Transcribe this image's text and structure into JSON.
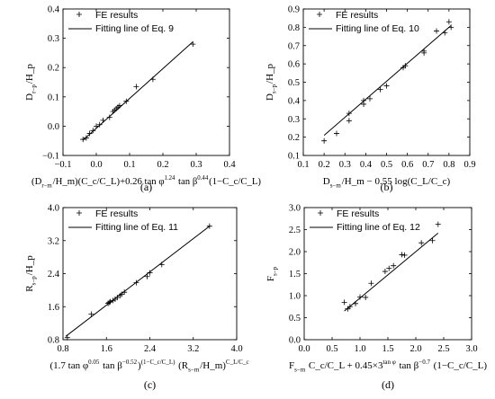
{
  "chart_data": [
    {
      "id": "a",
      "type": "scatter",
      "caption": "(a)",
      "xlim": [
        -0.1,
        0.4
      ],
      "ylim": [
        -0.1,
        0.4
      ],
      "xticks": [
        -0.1,
        0.0,
        0.1,
        0.2,
        0.3,
        0.4
      ],
      "yticks": [
        -0.1,
        0.0,
        0.1,
        0.2,
        0.3,
        0.4
      ],
      "xtick_labels": [
        "−0.1",
        "0.0",
        "0.1",
        "0.2",
        "0.3",
        "0.4"
      ],
      "ytick_labels": [
        "−0.1",
        "0.0",
        "0.1",
        "0.2",
        "0.3",
        "0.4"
      ],
      "xlabel": "(D_{r−m}/H_m)(C_c/C_L)+0.26 tan φ^{1.24} tan β^{0.44}(1−C_c/C_L)",
      "ylabel": "D_{r−p}/H_p",
      "legend": [
        "FE results",
        "Fitting line of Eq. 9"
      ],
      "series": [
        {
          "name": "FE results",
          "x": [
            -0.04,
            -0.03,
            -0.02,
            -0.01,
            0.0,
            0.01,
            0.02,
            0.04,
            0.05,
            0.055,
            0.06,
            0.065,
            0.07,
            0.09,
            0.12,
            0.17,
            0.29
          ],
          "y": [
            -0.045,
            -0.04,
            -0.025,
            -0.015,
            0.0,
            0.005,
            0.02,
            0.03,
            0.05,
            0.055,
            0.06,
            0.065,
            0.07,
            0.085,
            0.135,
            0.16,
            0.28
          ]
        },
        {
          "name": "Fitting line of Eq. 9",
          "x": [
            -0.04,
            0.29
          ],
          "y": [
            -0.048,
            0.288
          ]
        }
      ]
    },
    {
      "id": "b",
      "type": "scatter",
      "caption": "(b)",
      "xlim": [
        0.1,
        0.9
      ],
      "ylim": [
        0.1,
        0.9
      ],
      "xticks": [
        0.1,
        0.2,
        0.3,
        0.4,
        0.5,
        0.6,
        0.7,
        0.8,
        0.9
      ],
      "yticks": [
        0.1,
        0.2,
        0.3,
        0.4,
        0.5,
        0.6,
        0.7,
        0.8,
        0.9
      ],
      "xtick_labels": [
        "0.1",
        "0.2",
        "0.3",
        "0.4",
        "0.5",
        "0.6",
        "0.7",
        "0.8",
        "0.9"
      ],
      "ytick_labels": [
        "0.1",
        "0.2",
        "0.3",
        "0.4",
        "0.5",
        "0.6",
        "0.7",
        "0.8",
        "0.9"
      ],
      "xlabel": "D_{s−m}/H_m − 0.55 log(C_L/C_c)",
      "ylabel": "D_{s−p}/H_p",
      "legend": [
        "FE results",
        "Fitting line of Eq. 10"
      ],
      "series": [
        {
          "name": "FE results",
          "x": [
            0.2,
            0.26,
            0.32,
            0.32,
            0.39,
            0.39,
            0.42,
            0.47,
            0.5,
            0.58,
            0.59,
            0.68,
            0.68,
            0.74,
            0.78,
            0.8,
            0.81
          ],
          "y": [
            0.18,
            0.22,
            0.29,
            0.33,
            0.38,
            0.4,
            0.41,
            0.46,
            0.48,
            0.58,
            0.59,
            0.66,
            0.67,
            0.78,
            0.77,
            0.83,
            0.8
          ]
        },
        {
          "name": "Fitting line of Eq. 10",
          "x": [
            0.2,
            0.81
          ],
          "y": [
            0.21,
            0.81
          ]
        }
      ]
    },
    {
      "id": "c",
      "type": "scatter",
      "caption": "(c)",
      "xlim": [
        0.8,
        4.0
      ],
      "ylim": [
        0.8,
        4.0
      ],
      "xticks": [
        0.8,
        1.6,
        2.4,
        3.2,
        4.0
      ],
      "yticks": [
        0.8,
        1.6,
        2.4,
        3.2,
        4.0
      ],
      "xtick_labels": [
        "0.8",
        "1.6",
        "2.4",
        "3.2",
        "4.0"
      ],
      "ytick_labels": [
        "0.8",
        "1.6",
        "2.4",
        "3.2",
        "4.0"
      ],
      "xlabel": "(1.7 tan φ^{0.05} tan β^{−0.52})^{(1−C_c/C_L)} (R_{s−m}/H_m)^{C_L/C_c}",
      "ylabel": "R_{s−p}/H_p",
      "legend": [
        "FE results",
        "Fitting line of Eq. 11"
      ],
      "series": [
        {
          "name": "FE results",
          "x": [
            0.88,
            1.32,
            1.63,
            1.65,
            1.67,
            1.72,
            1.76,
            1.8,
            1.85,
            1.88,
            1.93,
            2.15,
            2.35,
            2.4,
            2.62,
            3.5
          ],
          "y": [
            0.85,
            1.42,
            1.68,
            1.7,
            1.72,
            1.75,
            1.78,
            1.82,
            1.87,
            1.9,
            1.95,
            2.18,
            2.33,
            2.42,
            2.62,
            3.55
          ]
        },
        {
          "name": "Fitting line of Eq. 11",
          "x": [
            0.85,
            3.5
          ],
          "y": [
            0.88,
            3.55
          ]
        }
      ]
    },
    {
      "id": "d",
      "type": "scatter",
      "caption": "(d)",
      "xlim": [
        0.0,
        3.0
      ],
      "ylim": [
        0.0,
        3.0
      ],
      "xticks": [
        0.0,
        0.5,
        1.0,
        1.5,
        2.0,
        2.5,
        3.0
      ],
      "yticks": [
        0.0,
        0.5,
        1.0,
        1.5,
        2.0,
        2.5,
        3.0
      ],
      "xtick_labels": [
        "0.0",
        "0.5",
        "1.0",
        "1.5",
        "2.0",
        "2.5",
        "3.0"
      ],
      "ytick_labels": [
        "0.0",
        "0.5",
        "1.0",
        "1.5",
        "2.0",
        "2.5",
        "3.0"
      ],
      "xlabel": "F_{s−m} C_c/C_L + 0.45×3^{tan φ} tan β^{−0.7} (1−C_c/C_L)",
      "ylabel": "F_{s−p}",
      "legend": [
        "FE results",
        "Fitting line of Eq. 12"
      ],
      "series": [
        {
          "name": "FE results",
          "x": [
            0.72,
            0.78,
            0.82,
            0.92,
            1.0,
            1.1,
            1.2,
            1.45,
            1.52,
            1.6,
            1.75,
            1.8,
            2.1,
            2.3,
            2.4
          ],
          "y": [
            0.85,
            0.7,
            0.75,
            0.82,
            0.97,
            0.96,
            1.28,
            1.55,
            1.62,
            1.68,
            1.93,
            1.92,
            2.2,
            2.25,
            2.62
          ]
        },
        {
          "name": "Fitting line of Eq. 12",
          "x": [
            0.72,
            2.4
          ],
          "y": [
            0.65,
            2.42
          ]
        }
      ]
    }
  ]
}
